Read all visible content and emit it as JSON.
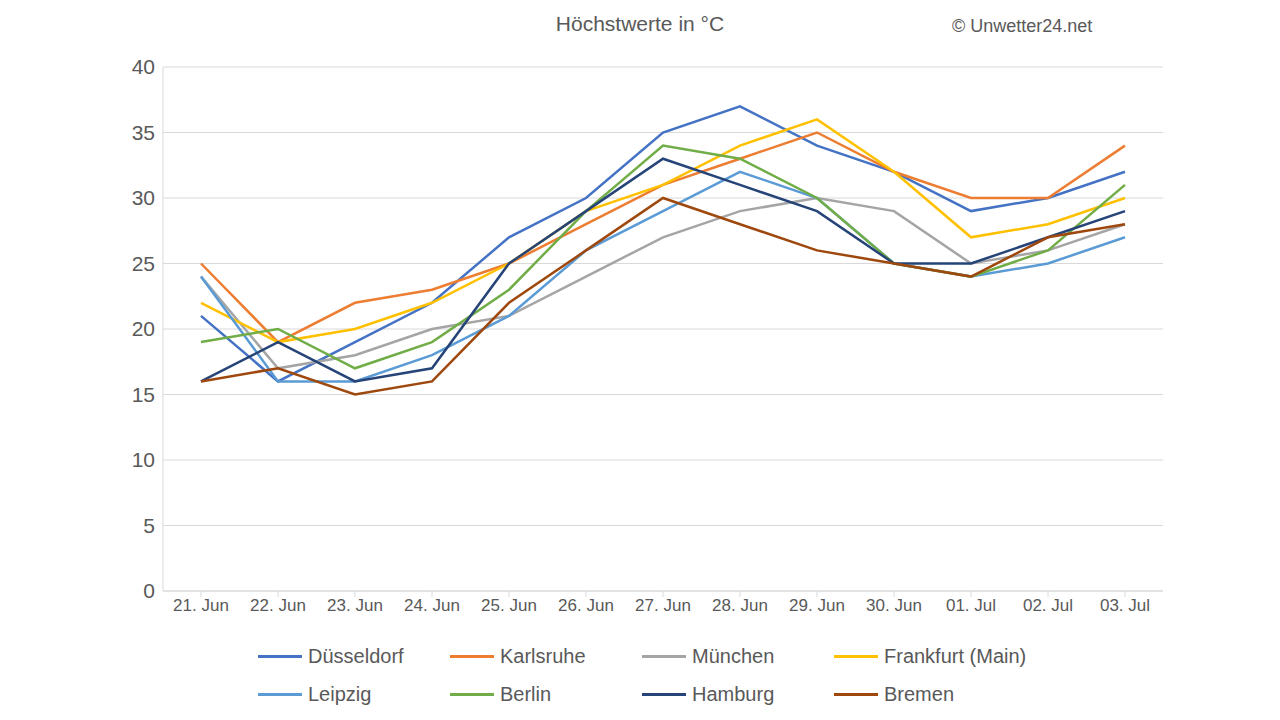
{
  "chart_data": {
    "type": "line",
    "title": "Höchstwerte in °C",
    "annotations": [
      "© Unwetter24.net"
    ],
    "categories": [
      "21. Jun",
      "22. Jun",
      "23. Jun",
      "24. Jun",
      "25. Jun",
      "26. Jun",
      "27. Jun",
      "28. Jun",
      "29. Jun",
      "30. Jun",
      "01. Jul",
      "02. Jul",
      "03. Jul"
    ],
    "series": [
      {
        "name": "Düsseldorf",
        "color": "#4472c4",
        "values": [
          21,
          16,
          19,
          22,
          27,
          30,
          35,
          37,
          34,
          32,
          29,
          30,
          32
        ]
      },
      {
        "name": "Karlsruhe",
        "color": "#ed7d31",
        "values": [
          25,
          19,
          22,
          23,
          25,
          28,
          31,
          33,
          35,
          32,
          30,
          30,
          34
        ]
      },
      {
        "name": "München",
        "color": "#a5a5a5",
        "values": [
          24,
          17,
          18,
          20,
          21,
          24,
          27,
          29,
          30,
          29,
          25,
          26,
          28
        ]
      },
      {
        "name": "Frankfurt (Main)",
        "color": "#ffc000",
        "values": [
          22,
          19,
          20,
          22,
          25,
          29,
          31,
          34,
          36,
          32,
          27,
          28,
          30
        ]
      },
      {
        "name": "Leipzig",
        "color": "#5b9bd5",
        "values": [
          24,
          16,
          16,
          18,
          21,
          26,
          29,
          32,
          30,
          25,
          24,
          25,
          27
        ]
      },
      {
        "name": "Berlin",
        "color": "#70ad47",
        "values": [
          19,
          20,
          17,
          19,
          23,
          29,
          34,
          33,
          30,
          25,
          24,
          26,
          31
        ]
      },
      {
        "name": "Hamburg",
        "color": "#264478",
        "values": [
          16,
          19,
          16,
          17,
          25,
          29,
          33,
          31,
          29,
          25,
          25,
          27,
          29
        ]
      },
      {
        "name": "Bremen",
        "color": "#9e480e",
        "values": [
          16,
          17,
          15,
          16,
          22,
          26,
          30,
          28,
          26,
          25,
          24,
          27,
          28
        ]
      }
    ],
    "ylim": [
      0,
      40
    ],
    "yticks": [
      0,
      5,
      10,
      15,
      20,
      25,
      30,
      35,
      40
    ],
    "grid": true,
    "legend": "bottom"
  }
}
